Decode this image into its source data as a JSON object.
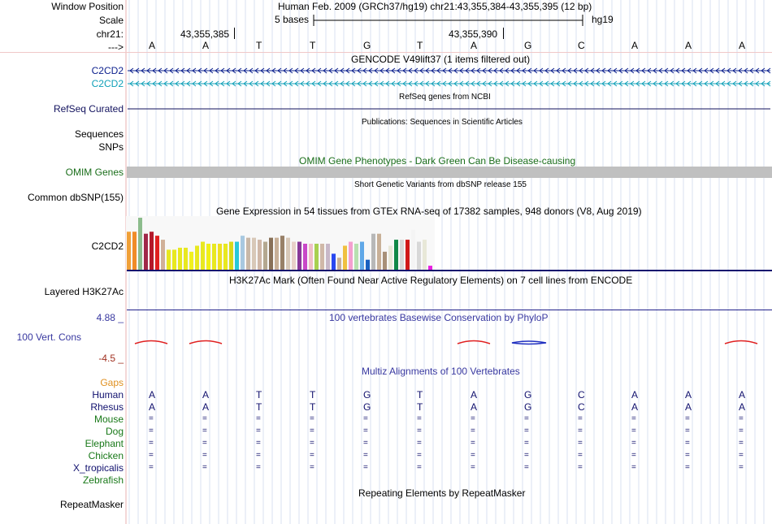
{
  "header": {
    "window_position_label": "Window Position",
    "window_position_value": "Human Feb. 2009 (GRCh37/hg19)   chr21:43,355,384-43,355,395 (12 bp)",
    "scale_label": "Scale",
    "scale_value": "5 bases",
    "scale_assembly": "hg19",
    "chrom_label": "chr21:",
    "coord_1": "43,355,385",
    "coord_2": "43,355,390",
    "strand_label": "--->"
  },
  "bases": [
    "A",
    "A",
    "T",
    "T",
    "G",
    "T",
    "A",
    "G",
    "C",
    "A",
    "A",
    "A"
  ],
  "gencode": {
    "title": "GENCODE V49lift37 (1 items filtered out)",
    "labels": [
      "C2CD2",
      "C2CD2"
    ],
    "colors": [
      "#0a1e8c",
      "#10a0b8"
    ]
  },
  "refseq": {
    "title": "RefSeq genes from NCBI",
    "label": "RefSeq Curated",
    "color": "#12125e"
  },
  "publications": {
    "title": "Publications: Sequences in Scientific Articles",
    "labels": [
      "Sequences",
      "SNPs"
    ]
  },
  "omim": {
    "title": "OMIM Gene Phenotypes - Dark Green Can Be Disease-causing",
    "label": "OMIM Genes",
    "color": "#1a6e1a",
    "bar_color": "#c0c0c0"
  },
  "dbsnp": {
    "title": "Short Genetic Variants from dbSNP release 155",
    "label": "Common dbSNP(155)"
  },
  "gtex": {
    "title": "Gene Expression in 54 tissues from GTEx RNA-seq of 17382 samples, 948 donors (V8, Aug 2019)",
    "label": "C2CD2",
    "bar_values": [
      19,
      19,
      26,
      18,
      19,
      17,
      15,
      10,
      10,
      11,
      11,
      9,
      12,
      14,
      13,
      13,
      13,
      13,
      14,
      14,
      17,
      16,
      16,
      15,
      14,
      16,
      16,
      17,
      16,
      14,
      14,
      13,
      13,
      13,
      13,
      13,
      8,
      6,
      12,
      14,
      13,
      14,
      5,
      18,
      18,
      9,
      12,
      15,
      15,
      15,
      20,
      14,
      15,
      2
    ],
    "bar_colors": [
      "#f0a038",
      "#f08c28",
      "#8cbc8c",
      "#a02848",
      "#b4192a",
      "#e02020",
      "#d0b098",
      "#e8e820",
      "#e8e820",
      "#e8e820",
      "#e8e820",
      "#f0f020",
      "#e8e820",
      "#e8e820",
      "#f0f018",
      "#e8e820",
      "#f0e020",
      "#e8e820",
      "#d8d818",
      "#28c8d8",
      "#a8c8e0",
      "#c8b8a8",
      "#d8c8b8",
      "#d0b8a8",
      "#b4a890",
      "#887058",
      "#c8b098",
      "#988068",
      "#d8c8b8",
      "#e8d0c8",
      "#883898",
      "#c848c8",
      "#f0c0c8",
      "#a8d050",
      "#d0b8a8",
      "#c8b8c8",
      "#2848f0",
      "#c8b098",
      "#f0c040",
      "#f4a0d0",
      "#b8e0b0",
      "#60a8e8",
      "#1860c0",
      "#b8b8b8",
      "#c8b098",
      "#a89078",
      "#e8e8d8",
      "#108848",
      "#d8d8d8",
      "#d01818",
      "#f4f4f4",
      "#d8d8d8",
      "#e8e8d8",
      "#e820e0"
    ]
  },
  "h3k27ac": {
    "title": "H3K27Ac Mark (Often Found Near Active Regulatory Elements) on 7 cell lines from ENCODE",
    "label": "Layered H3K27Ac"
  },
  "conservation": {
    "title": "100 vertebrates Basewise Conservation by PhyloP",
    "label": "100 Vert. Cons",
    "y_max": "4.88 _",
    "y_min": "-4.5 _",
    "title_color": "#3838a0",
    "max_color": "#3838a0",
    "min_color": "#a03020"
  },
  "multiz": {
    "title": "Multiz Alignments of 100 Vertebrates",
    "gaps_label": "Gaps",
    "gaps_color": "#e09020",
    "species": [
      {
        "name": "Human",
        "color": "#10106e"
      },
      {
        "name": "Rhesus",
        "color": "#10106e"
      },
      {
        "name": "Mouse",
        "color": "#187818"
      },
      {
        "name": "Dog",
        "color": "#187818"
      },
      {
        "name": "Elephant",
        "color": "#187818"
      },
      {
        "name": "Chicken",
        "color": "#187818"
      },
      {
        "name": "X_tropicalis",
        "color": "#10106e"
      },
      {
        "name": "Zebrafish",
        "color": "#187818"
      }
    ],
    "human_seq": [
      "A",
      "A",
      "T",
      "T",
      "G",
      "T",
      "A",
      "G",
      "C",
      "A",
      "A",
      "A"
    ],
    "rhesus_seq": [
      "A",
      "A",
      "T",
      "T",
      "G",
      "T",
      "A",
      "G",
      "C",
      "A",
      "A",
      "A"
    ],
    "match_symbol": "="
  },
  "repeatmasker": {
    "title": "Repeating Elements by RepeatMasker",
    "label": "RepeatMasker"
  }
}
